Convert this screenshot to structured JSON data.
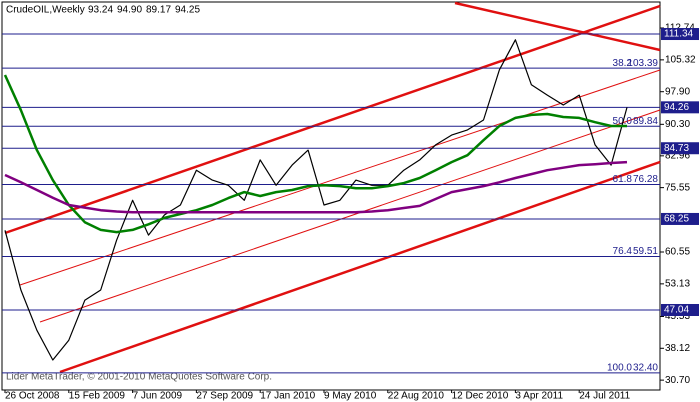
{
  "chart_data": {
    "type": "line",
    "title": "CrudeOIL,Weekly",
    "ohlc": [
      "93.24",
      "94.90",
      "89.17",
      "94.25"
    ],
    "footer": "Lider MetaTrader, © 2001-2010 MetaQuotes Software Corp.",
    "categories": [
      "26 Oct 2008",
      null,
      null,
      null,
      "15 Feb 2009",
      null,
      null,
      null,
      "7 Jun 2009",
      null,
      null,
      null,
      "27 Sep 2009",
      null,
      null,
      null,
      "17 Jan 2010",
      null,
      null,
      null,
      "9 May 2010",
      null,
      null,
      null,
      "22 Aug 2010",
      null,
      null,
      null,
      "12 Dec 2010",
      null,
      null,
      null,
      "3 Apr 2011",
      null,
      null,
      null,
      "24 Jul 2011",
      null,
      null,
      null
    ],
    "series": [
      {
        "color": "#000000",
        "values": [
          65.6,
          51.7,
          42.3,
          35.4,
          40,
          49.3,
          51.7,
          63.3,
          72.6,
          64.5,
          69.2,
          71.5,
          79.6,
          77.3,
          76.1,
          72.6,
          82,
          76.1,
          80.8,
          84.3,
          71.5,
          72.6,
          77.3,
          76.1,
          76.1,
          79.6,
          82,
          85.5,
          87.8,
          89,
          91.3,
          103,
          110,
          99.5,
          97.1,
          94.8,
          97.1,
          85.5,
          80.8,
          94.25
        ]
      },
      {
        "color": "#008000",
        "values": [
          101.8,
          93.6,
          84.3,
          77.3,
          71.5,
          67.5,
          65.7,
          65.2,
          65.7,
          67,
          68.5,
          69.4,
          70.3,
          71.5,
          73.1,
          74.5,
          73.6,
          74.5,
          75,
          75.9,
          76.1,
          75.9,
          75.4,
          75.4,
          75.9,
          76.6,
          77.8,
          79.6,
          81.5,
          83.1,
          86.6,
          89.9,
          91.8,
          92.5,
          92.7,
          92,
          91.8,
          90.8,
          89.9,
          89.9
        ]
      },
      {
        "color": "#800080",
        "values": [
          78.5,
          76.8,
          75,
          73.2,
          71.5,
          70.9,
          70.3,
          70,
          69.8,
          69.8,
          69.8,
          69.8,
          69.8,
          69.8,
          69.8,
          69.8,
          69.8,
          69.8,
          69.8,
          69.8,
          69.8,
          69.8,
          69.8,
          70,
          70.3,
          70.8,
          71.3,
          72.9,
          74.5,
          75.2,
          75.9,
          76.8,
          77.8,
          78.7,
          79.6,
          80.2,
          80.8,
          81,
          81.3,
          81.5
        ]
      }
    ],
    "ylim": [
      28.4,
      118.8
    ],
    "yticks": [
      {
        "value": 30.7,
        "label": "30.70"
      },
      38.12,
      45.53,
      53.13,
      60.55,
      75.55,
      82.96,
      {
        "value": 90.3,
        "label": "90.30"
      },
      {
        "value": 97.9,
        "label": "97.90"
      },
      105.32,
      112.74
    ],
    "level_color": "#1e1e8c",
    "levels": [
      {
        "price": 111.34
      },
      {
        "ratio": "38.2",
        "price": 103.39
      },
      {
        "price": 94.26
      },
      {
        "ratio": "50.0",
        "price": 89.84
      },
      {
        "price": 84.73
      },
      {
        "ratio": "61.8",
        "price": 76.28
      },
      {
        "price": 68.25
      },
      {
        "ratio": "76.4",
        "price": 59.51
      },
      {
        "price": 47.04
      },
      {
        "ratio": "100.0",
        "price": {
          "value": 32.4,
          "label": "32.40"
        }
      }
    ]
  }
}
